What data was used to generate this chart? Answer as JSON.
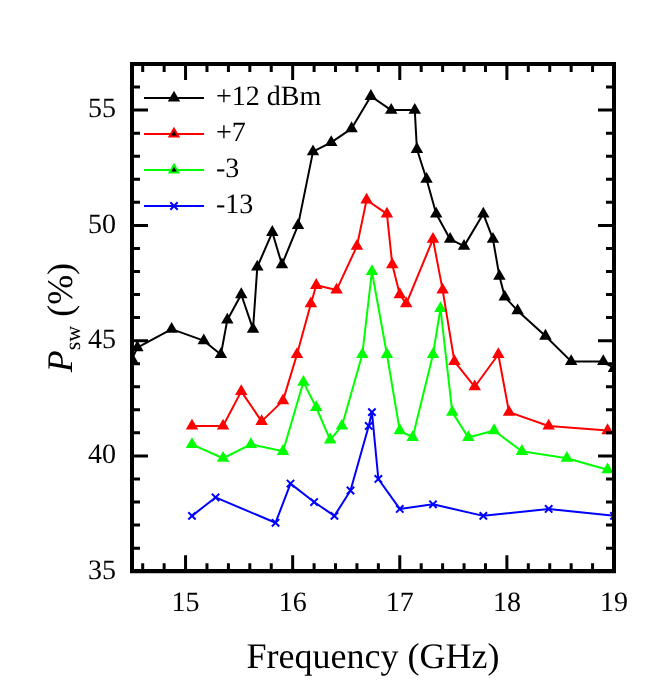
{
  "chart_data": {
    "type": "line",
    "xlabel": "Frequency (GHz)",
    "ylabel": "P$_{sw}$ (%)",
    "xlim": [
      14.5,
      19
    ],
    "ylim": [
      35,
      57
    ],
    "xticks": [
      {
        "value": 14.6,
        "label": null
      },
      {
        "value": 14.8,
        "label": null
      },
      15,
      {
        "value": 15.2,
        "label": null
      },
      {
        "value": 15.4,
        "label": null
      },
      {
        "value": 15.6,
        "label": null
      },
      {
        "value": 15.8,
        "label": null
      },
      16,
      {
        "value": 16.2,
        "label": null
      },
      {
        "value": 16.4,
        "label": null
      },
      {
        "value": 16.6,
        "label": null
      },
      {
        "value": 16.8,
        "label": null
      },
      17,
      {
        "value": 17.2,
        "label": null
      },
      {
        "value": 17.4,
        "label": null
      },
      {
        "value": 17.6,
        "label": null
      },
      {
        "value": 17.8,
        "label": null
      },
      18,
      {
        "value": 18.2,
        "label": null
      },
      {
        "value": 18.4,
        "label": null
      },
      {
        "value": 18.6,
        "label": null
      },
      {
        "value": 18.8,
        "label": null
      },
      19
    ],
    "yticks": [
      35,
      {
        "value": 36,
        "label": null
      },
      {
        "value": 37,
        "label": null
      },
      {
        "value": 38,
        "label": null
      },
      {
        "value": 39,
        "label": null
      },
      40,
      {
        "value": 41,
        "label": null
      },
      {
        "value": 42,
        "label": null
      },
      {
        "value": 43,
        "label": null
      },
      {
        "value": 44,
        "label": null
      },
      45,
      {
        "value": 46,
        "label": null
      },
      {
        "value": 47,
        "label": null
      },
      {
        "value": 48,
        "label": null
      },
      {
        "value": 49,
        "label": null
      },
      50,
      {
        "value": 51,
        "label": null
      },
      {
        "value": 52,
        "label": null
      },
      {
        "value": 53,
        "label": null
      },
      {
        "value": 54,
        "label": null
      },
      55,
      {
        "value": 56,
        "label": null
      },
      {
        "value": 57,
        "label": null
      }
    ],
    "legend": "top left",
    "line_style": "solid",
    "series": [
      {
        "name": "+12 dBm",
        "color": "#000000",
        "marker": "triangle",
        "x": [
          14.5,
          14.55,
          14.87,
          15.17,
          15.33,
          15.39,
          15.52,
          15.63,
          15.67,
          15.81,
          15.9,
          16.05,
          16.19,
          16.36,
          16.55,
          16.73,
          16.92,
          17.14,
          17.16,
          17.25,
          17.34,
          17.47,
          17.6,
          17.78,
          17.87,
          17.93,
          17.98,
          18.1,
          18.36,
          18.6,
          18.9,
          19
        ],
        "values": [
          44.2,
          44.7,
          45.5,
          45,
          44.4,
          45.9,
          47,
          45.5,
          48.2,
          49.7,
          48.3,
          50,
          53.2,
          53.6,
          54.2,
          55.6,
          55,
          55,
          53.3,
          52,
          50.5,
          49.4,
          49.1,
          50.5,
          49.4,
          47.8,
          46.9,
          46.3,
          45.2,
          44.1,
          44.1,
          43.8
        ]
      },
      {
        "name": "+7",
        "color": "#ff0000",
        "marker": "triangle",
        "x": [
          15.06,
          15.35,
          15.52,
          15.71,
          15.91,
          16.04,
          16.17,
          16.22,
          16.41,
          16.6,
          16.69,
          16.88,
          16.93,
          17,
          17.06,
          17.31,
          17.4,
          17.51,
          17.7,
          17.92,
          18.02,
          18.39,
          18.94
        ],
        "values": [
          41.3,
          41.3,
          42.8,
          41.5,
          42.4,
          44.4,
          46.6,
          47.4,
          47.2,
          49.1,
          51.1,
          50.5,
          48.3,
          47,
          46.6,
          49.4,
          47.2,
          44.1,
          43,
          44.4,
          41.9,
          41.3,
          41.1
        ]
      },
      {
        "name": "-3",
        "color": "#00ff00",
        "marker": "triangle",
        "x": [
          15.06,
          15.35,
          15.61,
          15.91,
          16.1,
          16.22,
          16.35,
          16.46,
          16.65,
          16.74,
          16.88,
          17,
          17.12,
          17.31,
          17.38,
          17.49,
          17.64,
          17.88,
          18.14,
          18.56,
          18.94
        ],
        "values": [
          40.5,
          39.9,
          40.5,
          40.2,
          43.2,
          42.1,
          40.7,
          41.3,
          44.4,
          48,
          44.4,
          41.1,
          40.8,
          44.4,
          46.4,
          41.9,
          40.8,
          41.1,
          40.2,
          39.9,
          39.4
        ]
      },
      {
        "name": "-13",
        "color": "#0000ff",
        "marker": "cross",
        "x": [
          15.06,
          15.28,
          15.84,
          15.98,
          16.2,
          16.39,
          16.54,
          16.71,
          16.74,
          16.8,
          17,
          17.31,
          17.78,
          18.39,
          19
        ],
        "values": [
          37.4,
          38.2,
          37.1,
          38.8,
          38,
          37.4,
          38.5,
          41.3,
          41.9,
          39,
          37.7,
          37.9,
          37.4,
          37.7,
          37.4
        ]
      }
    ]
  }
}
